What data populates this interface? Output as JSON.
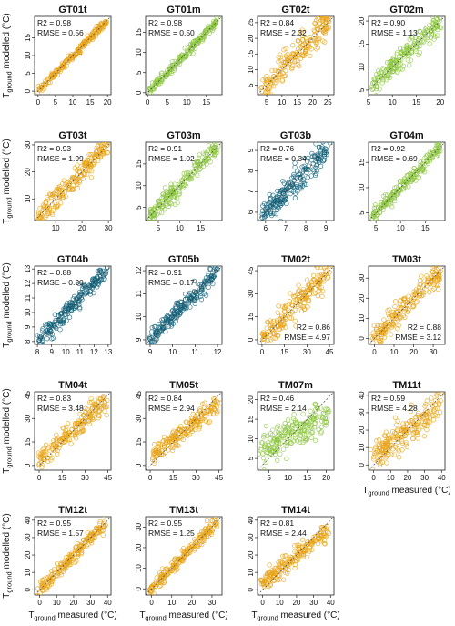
{
  "colors": {
    "t": "#E8A317",
    "m": "#8CC63F",
    "b": "#0F5F78",
    "diag": "#444444"
  },
  "labels": {
    "y_main": "T",
    "y_sub": "ground",
    "y_rest": " modelled (°C)",
    "x_main": "T",
    "x_sub": "ground",
    "x_rest": " measured (°C)"
  },
  "chart_data": [
    {
      "type": "scatter",
      "title": "GT01t",
      "color": "t",
      "r2": "R2 = 0.98",
      "rmse": "RMSE = 0.56",
      "stat_pos": "top-left",
      "xlim": [
        -1,
        21
      ],
      "ylim": [
        -1,
        21
      ],
      "xticks": [
        0,
        5,
        10,
        15,
        20
      ],
      "yticks": [
        0,
        5,
        10,
        15
      ],
      "spread": 0.55,
      "skew": 0
    },
    {
      "type": "scatter",
      "title": "GT01m",
      "color": "m",
      "r2": "R2 = 0.98",
      "rmse": "RMSE = 0.50",
      "stat_pos": "top-left",
      "xlim": [
        -0.5,
        19
      ],
      "ylim": [
        -0.5,
        19
      ],
      "xticks": [
        0,
        5,
        10,
        15
      ],
      "yticks": [
        0,
        5,
        10,
        15
      ],
      "spread": 0.5,
      "skew": 0
    },
    {
      "type": "scatter",
      "title": "GT02t",
      "color": "t",
      "r2": "R2 = 0.84",
      "rmse": "RMSE = 2.32",
      "stat_pos": "top-left",
      "xlim": [
        2,
        27
      ],
      "ylim": [
        2,
        27
      ],
      "xticks": [
        5,
        10,
        15,
        20,
        25
      ],
      "yticks": [
        5,
        10,
        15,
        20,
        25
      ],
      "spread": 2.3,
      "skew": 0
    },
    {
      "type": "scatter",
      "title": "GT02m",
      "color": "m",
      "r2": "R2 = 0.90",
      "rmse": "RMSE = 1.13",
      "stat_pos": "top-left",
      "xlim": [
        5,
        21
      ],
      "ylim": [
        4,
        21
      ],
      "xticks": [
        5,
        10,
        15,
        20
      ],
      "yticks": [
        5,
        10,
        15,
        20
      ],
      "spread": 1.2,
      "skew": 0
    },
    {
      "type": "scatter",
      "title": "GT03t",
      "color": "t",
      "r2": "R2 = 0.93",
      "rmse": "RMSE = 1.99",
      "stat_pos": "top-left",
      "xlim": [
        2,
        31
      ],
      "ylim": [
        2,
        31
      ],
      "xticks": [
        10,
        20,
        30
      ],
      "yticks": [
        10,
        20,
        30
      ],
      "spread": 2,
      "skew": 0
    },
    {
      "type": "scatter",
      "title": "GT03m",
      "color": "m",
      "r2": "R2 = 0.91",
      "rmse": "RMSE = 1.02",
      "stat_pos": "top-left",
      "xlim": [
        2,
        20
      ],
      "ylim": [
        2,
        20
      ],
      "xticks": [
        5,
        10,
        15
      ],
      "yticks": [
        5,
        10,
        15
      ],
      "spread": 1,
      "skew": 0
    },
    {
      "type": "scatter",
      "title": "GT03b",
      "color": "b",
      "r2": "R2 = 0.76",
      "rmse": "RMSE = 0.34",
      "stat_pos": "top-left",
      "xlim": [
        5.6,
        9.4
      ],
      "ylim": [
        5.6,
        9.4
      ],
      "xticks": [
        6,
        7,
        8,
        9
      ],
      "yticks": [
        6,
        7,
        8,
        9
      ],
      "spread": 0.3,
      "skew": 0
    },
    {
      "type": "scatter",
      "title": "GT04m",
      "color": "m",
      "r2": "R2 = 0.92",
      "rmse": "RMSE = 0.69",
      "stat_pos": "top-left",
      "xlim": [
        3.5,
        19
      ],
      "ylim": [
        3.5,
        19
      ],
      "xticks": [
        5,
        10,
        15
      ],
      "yticks": [
        5,
        10,
        15
      ],
      "spread": 0.7,
      "skew": 0
    },
    {
      "type": "scatter",
      "title": "GT04b",
      "color": "b",
      "r2": "R2 = 0.88",
      "rmse": "RMSE = 0.30",
      "stat_pos": "top-left",
      "xlim": [
        7.8,
        13.2
      ],
      "ylim": [
        7.8,
        13.2
      ],
      "xticks": [
        8,
        9,
        10,
        11,
        12,
        13
      ],
      "yticks": [
        8,
        9,
        10,
        11,
        12,
        13
      ],
      "spread": 0.3,
      "skew": 0
    },
    {
      "type": "scatter",
      "title": "GT05b",
      "color": "b",
      "r2": "R2 = 0.91",
      "rmse": "RMSE = 0.17",
      "stat_pos": "top-left",
      "xlim": [
        8.8,
        12.2
      ],
      "ylim": [
        8.8,
        12.2
      ],
      "xticks": [
        9,
        10,
        11,
        12
      ],
      "yticks": [
        9,
        10,
        11,
        12
      ],
      "spread": 0.17,
      "skew": 0
    },
    {
      "type": "scatter",
      "title": "TM02t",
      "color": "t",
      "r2": "R2 = 0.86",
      "rmse": "RMSE = 4.97",
      "stat_pos": "bottom-right",
      "xlim": [
        -3,
        48
      ],
      "ylim": [
        -3,
        48
      ],
      "xticks": [
        0,
        15,
        30,
        45
      ],
      "yticks": [
        0,
        15,
        30,
        45
      ],
      "spread": 4.5,
      "skew": 0
    },
    {
      "type": "scatter",
      "title": "TM03t",
      "color": "t",
      "r2": "R2 = 0.88",
      "rmse": "RMSE = 3.12",
      "stat_pos": "bottom-right",
      "xlim": [
        -3,
        36
      ],
      "ylim": [
        -3,
        36
      ],
      "xticks": [
        0,
        10,
        20,
        30
      ],
      "yticks": [
        0,
        10,
        20,
        30
      ],
      "spread": 3,
      "skew": 0
    },
    {
      "type": "scatter",
      "title": "TM04t",
      "color": "t",
      "r2": "R2 = 0.83",
      "rmse": "RMSE = 3.48",
      "stat_pos": "top-left",
      "xlim": [
        -3,
        47
      ],
      "ylim": [
        -3,
        47
      ],
      "xticks": [
        0,
        15,
        30,
        45
      ],
      "yticks": [
        0,
        15,
        30,
        45
      ],
      "spread": 3.3,
      "skew": 0.15
    },
    {
      "type": "scatter",
      "title": "TM05t",
      "color": "t",
      "r2": "R2 = 0.84",
      "rmse": "RMSE = 2.94",
      "stat_pos": "top-left",
      "xlim": [
        -3,
        47
      ],
      "ylim": [
        -3,
        47
      ],
      "xticks": [
        0,
        15,
        30,
        45
      ],
      "yticks": [
        0,
        15,
        30,
        45
      ],
      "spread": 3,
      "skew": 0.2
    },
    {
      "type": "scatter",
      "title": "TM07m",
      "color": "m",
      "r2": "R2 = 0.46",
      "rmse": "RMSE = 2.14",
      "stat_pos": "top-left",
      "xlim": [
        2,
        22
      ],
      "ylim": [
        2,
        22
      ],
      "xticks": [
        5,
        10,
        15,
        20
      ],
      "yticks": [
        5,
        10,
        15,
        20
      ],
      "spread": 2.2,
      "skew": 0.45
    },
    {
      "type": "scatter",
      "title": "TM11t",
      "color": "t",
      "r2": "R2 = 0.59",
      "rmse": "RMSE = 4.28",
      "stat_pos": "top-left",
      "xlim": [
        -3,
        42
      ],
      "ylim": [
        -3,
        42
      ],
      "xticks": [
        0,
        10,
        20,
        30,
        40
      ],
      "yticks": [
        0,
        10,
        20,
        30,
        40
      ],
      "spread": 4.2,
      "skew": 0.3
    },
    {
      "type": "scatter",
      "title": "TM12t",
      "color": "t",
      "r2": "R2 = 0.95",
      "rmse": "RMSE = 1.57",
      "stat_pos": "top-left",
      "xlim": [
        -3,
        42
      ],
      "ylim": [
        -3,
        42
      ],
      "xticks": [
        0,
        10,
        20,
        30,
        40
      ],
      "yticks": [
        0,
        10,
        20,
        30,
        40
      ],
      "spread": 2,
      "skew": 0
    },
    {
      "type": "scatter",
      "title": "TM13t",
      "color": "t",
      "r2": "R2 = 0.95",
      "rmse": "RMSE = 1.25",
      "stat_pos": "top-left",
      "xlim": [
        -3,
        35
      ],
      "ylim": [
        -3,
        35
      ],
      "xticks": [
        0,
        10,
        20,
        30
      ],
      "yticks": [
        0,
        10,
        20,
        30
      ],
      "spread": 1.5,
      "skew": 0
    },
    {
      "type": "scatter",
      "title": "TM14t",
      "color": "t",
      "r2": "R2 = 0.81",
      "rmse": "RMSE = 2.44",
      "stat_pos": "top-left",
      "xlim": [
        -3,
        42
      ],
      "ylim": [
        -3,
        42
      ],
      "xticks": [
        0,
        10,
        20,
        30,
        40
      ],
      "yticks": [
        0,
        10,
        20,
        30,
        40
      ],
      "spread": 2.6,
      "skew": 0.2
    }
  ]
}
